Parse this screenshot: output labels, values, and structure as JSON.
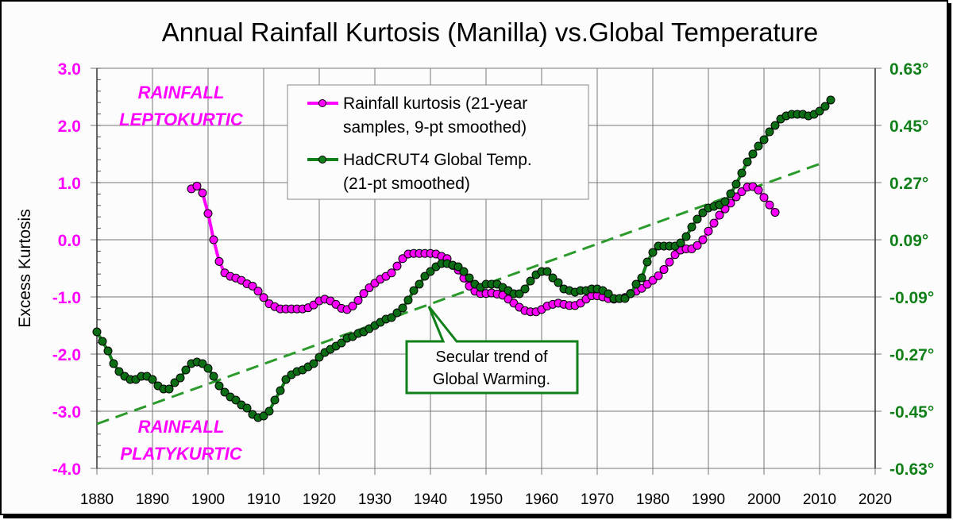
{
  "chart_data": {
    "type": "line",
    "title": "Annual Rainfall Kurtosis (Manilla) vs.Global Temperature",
    "ylabel": "Excess Kurtosis",
    "xlabel": "",
    "xlim": [
      1880,
      2020
    ],
    "ylim": [
      -4.0,
      3.0
    ],
    "y2lim": [
      -0.63,
      0.63
    ],
    "grid": true,
    "legend_position": "top-center",
    "x_ticks": [
      "1880",
      "1890",
      "1900",
      "1910",
      "1920",
      "1930",
      "1940",
      "1950",
      "1960",
      "1970",
      "1980",
      "1990",
      "2000",
      "2010",
      "2020"
    ],
    "y_ticks": [
      "3.0",
      "2.0",
      "1.0",
      "0.0",
      "-1.0",
      "-2.0",
      "-3.0",
      "-4.0"
    ],
    "y2_ticks": [
      "0.63°",
      "0.45°",
      "0.27°",
      "0.09°",
      "-0.09°",
      "-0.27°",
      "-0.45°",
      "-0.63°"
    ],
    "colors": {
      "kurtosis": "#ff00ff",
      "temperature": "#11801a",
      "trend": "#2a9a2a"
    },
    "annotations": {
      "leptokurtic": [
        "RAINFALL",
        "LEPTOKURTIC"
      ],
      "platykurtic": [
        "RAINFALL",
        "PLATYKURTIC"
      ],
      "trend_callout": [
        "Secular trend of",
        "Global Warming."
      ]
    },
    "series": [
      {
        "name": "Rainfall kurtosis (21-year samples, 9-pt smoothed)",
        "legend_lines": [
          "Rainfall kurtosis (21-year",
          "samples, 9-pt smoothed)"
        ],
        "axis": "left",
        "x_start": 1897,
        "values": [
          0.89,
          0.94,
          0.82,
          0.46,
          0.0,
          -0.38,
          -0.58,
          -0.64,
          -0.67,
          -0.71,
          -0.77,
          -0.81,
          -0.9,
          -1.01,
          -1.12,
          -1.17,
          -1.21,
          -1.21,
          -1.21,
          -1.21,
          -1.21,
          -1.19,
          -1.14,
          -1.07,
          -1.04,
          -1.07,
          -1.13,
          -1.2,
          -1.22,
          -1.16,
          -1.06,
          -0.94,
          -0.84,
          -0.76,
          -0.69,
          -0.64,
          -0.58,
          -0.46,
          -0.33,
          -0.25,
          -0.24,
          -0.24,
          -0.24,
          -0.24,
          -0.25,
          -0.29,
          -0.33,
          -0.45,
          -0.53,
          -0.67,
          -0.81,
          -0.9,
          -0.94,
          -0.94,
          -0.93,
          -0.95,
          -0.97,
          -1.04,
          -1.11,
          -1.18,
          -1.24,
          -1.26,
          -1.26,
          -1.22,
          -1.16,
          -1.13,
          -1.11,
          -1.13,
          -1.15,
          -1.15,
          -1.11,
          -1.04,
          -0.98,
          -0.98,
          -1.0,
          -1.03,
          -1.04,
          -1.03,
          -1.01,
          -0.94,
          -0.9,
          -0.85,
          -0.78,
          -0.71,
          -0.63,
          -0.52,
          -0.39,
          -0.26,
          -0.18,
          -0.16,
          -0.16,
          -0.1,
          0.0,
          0.15,
          0.29,
          0.43,
          0.54,
          0.64,
          0.75,
          0.84,
          0.92,
          0.93,
          0.87,
          0.74,
          0.61,
          0.48
        ]
      },
      {
        "name": "HadCRUT4 Global Temp. (21-pt smoothed)",
        "legend_lines": [
          "HadCRUT4 Global Temp.",
          "(21-pt smoothed)"
        ],
        "axis": "right",
        "x_start": 1880,
        "values": [
          -0.2,
          -0.23,
          -0.26,
          -0.3,
          -0.325,
          -0.34,
          -0.35,
          -0.35,
          -0.34,
          -0.34,
          -0.35,
          -0.37,
          -0.38,
          -0.38,
          -0.36,
          -0.345,
          -0.32,
          -0.3,
          -0.295,
          -0.3,
          -0.315,
          -0.34,
          -0.37,
          -0.39,
          -0.405,
          -0.415,
          -0.43,
          -0.44,
          -0.46,
          -0.47,
          -0.465,
          -0.45,
          -0.415,
          -0.385,
          -0.35,
          -0.335,
          -0.325,
          -0.32,
          -0.31,
          -0.3,
          -0.28,
          -0.265,
          -0.255,
          -0.245,
          -0.235,
          -0.22,
          -0.215,
          -0.205,
          -0.2,
          -0.19,
          -0.18,
          -0.17,
          -0.16,
          -0.155,
          -0.14,
          -0.125,
          -0.1,
          -0.07,
          -0.05,
          -0.025,
          -0.01,
          0.005,
          0.015,
          0.015,
          0.01,
          0.005,
          -0.01,
          -0.03,
          -0.05,
          -0.06,
          -0.05,
          -0.05,
          -0.05,
          -0.06,
          -0.07,
          -0.08,
          -0.08,
          -0.065,
          -0.04,
          -0.02,
          -0.01,
          -0.01,
          -0.03,
          -0.045,
          -0.065,
          -0.07,
          -0.075,
          -0.07,
          -0.07,
          -0.065,
          -0.065,
          -0.07,
          -0.08,
          -0.095,
          -0.095,
          -0.095,
          -0.08,
          -0.05,
          -0.03,
          0.02,
          0.05,
          0.07,
          0.07,
          0.07,
          0.07,
          0.08,
          0.1,
          0.13,
          0.155,
          0.175,
          0.19,
          0.195,
          0.2,
          0.21,
          0.235,
          0.265,
          0.3,
          0.335,
          0.36,
          0.385,
          0.405,
          0.43,
          0.45,
          0.47,
          0.48,
          0.485,
          0.485,
          0.485,
          0.48,
          0.485,
          0.495,
          0.51,
          0.53
        ]
      }
    ],
    "trend": {
      "axis": "right",
      "x": [
        1880,
        2011
      ],
      "y": [
        -0.49,
        0.335
      ]
    }
  }
}
